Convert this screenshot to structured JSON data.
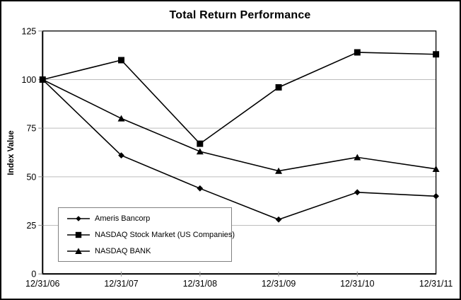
{
  "chart_data": {
    "type": "line",
    "title": "Total Return Performance",
    "xlabel": "",
    "ylabel": "Index Value",
    "x": [
      "12/31/06",
      "12/31/07",
      "12/31/08",
      "12/31/09",
      "12/31/10",
      "12/31/11"
    ],
    "ylim": [
      0,
      125
    ],
    "yticks": [
      0,
      25,
      50,
      75,
      100,
      125
    ],
    "grid": "horizontal",
    "legend_position": "inside-bottom-left",
    "series": [
      {
        "name": "Ameris Bancorp",
        "marker": "diamond",
        "values": [
          100,
          61,
          44,
          28,
          42,
          40
        ]
      },
      {
        "name": "NASDAQ Stock Market (US Companies)",
        "marker": "square",
        "values": [
          100,
          110,
          67,
          96,
          114,
          113
        ]
      },
      {
        "name": "NASDAQ BANK",
        "marker": "triangle",
        "values": [
          100,
          80,
          63,
          53,
          60,
          54
        ]
      }
    ],
    "colors": {
      "line": "#000000",
      "gridline": "#bdbdbd",
      "tick": "#999999",
      "axis": "#000000",
      "plot_border": "#000000",
      "legend_border": "#808080",
      "background": "#ffffff"
    }
  }
}
